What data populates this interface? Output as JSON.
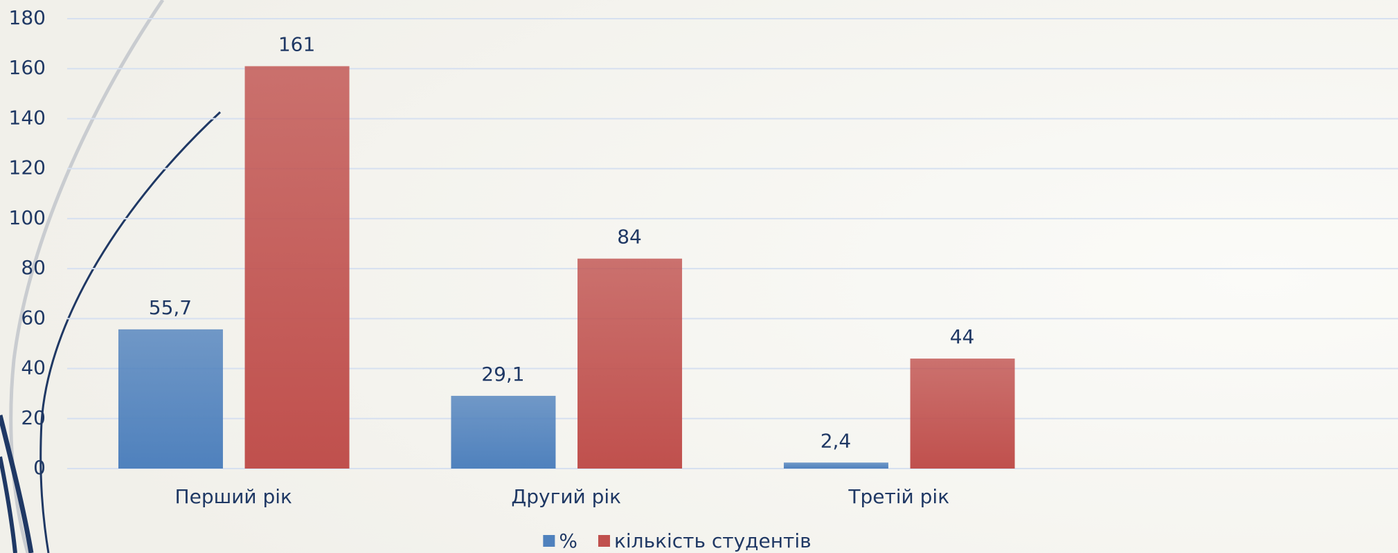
{
  "chart_data": {
    "type": "bar",
    "categories": [
      "Перший рік",
      "Другий рік",
      "Третій рік",
      null
    ],
    "series": [
      {
        "name": "%",
        "color": "#4f81bd",
        "values": [
          55.7,
          29.1,
          2.4,
          null
        ],
        "value_labels": [
          "55,7",
          "29,1",
          "2,4",
          null
        ]
      },
      {
        "name": "кількість студентів",
        "color": "#c0504d",
        "values": [
          161,
          84,
          44,
          null
        ]
      }
    ],
    "ylim": [
      0,
      180
    ],
    "yticks": [
      0,
      20,
      40,
      60,
      80,
      100,
      120,
      140,
      160,
      180
    ],
    "grid": true,
    "legend": "bottom"
  }
}
